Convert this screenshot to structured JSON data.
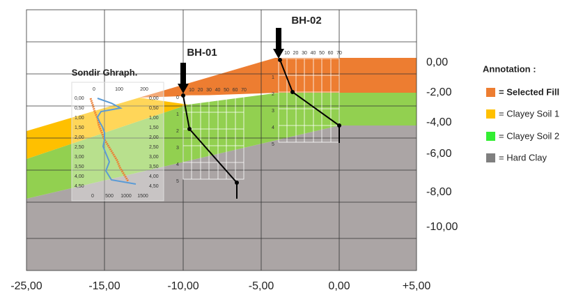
{
  "y_axis_labels": [
    "0,00",
    "-2,00",
    "-4,00",
    "-6,00",
    "-8,00",
    "-10,00"
  ],
  "x_axis_labels": [
    "-25,00",
    "-15,00",
    "-10,00",
    "-5,00",
    "0,00",
    "+5,00"
  ],
  "boreholes": [
    {
      "label": "BH-01",
      "top_ticks": [
        "10",
        "20",
        "30",
        "40",
        "50",
        "60",
        "70"
      ],
      "depth_ticks": [
        "0",
        "1",
        "2",
        "3",
        "4",
        "5"
      ]
    },
    {
      "label": "BH-02",
      "top_ticks": [
        "10",
        "20",
        "30",
        "40",
        "50",
        "60",
        "70"
      ],
      "depth_ticks": [
        "1",
        "2",
        "3",
        "4",
        "5"
      ]
    }
  ],
  "sondir": {
    "title": "Sondir Ghraph.",
    "top_ticks": [
      "0",
      "100",
      "200"
    ],
    "depth_left": [
      "0,00",
      "0,50",
      "1,00",
      "1,50",
      "2,00",
      "2,50",
      "3,00",
      "3,50",
      "4,00",
      "4,50"
    ],
    "depth_right": [
      "0,00",
      "0,50",
      "1,00",
      "1,50",
      "2,00",
      "2,50",
      "3,00",
      "3,50",
      "4,00",
      "4,50"
    ],
    "bottom_ticks": [
      "0",
      "500",
      "1000",
      "1500"
    ]
  },
  "legend": {
    "title": "Annotation :",
    "items": [
      "= Selected Fill",
      "= Clayey Soil 1",
      "= Clayey Soil 2",
      "= Hard Clay"
    ]
  }
}
